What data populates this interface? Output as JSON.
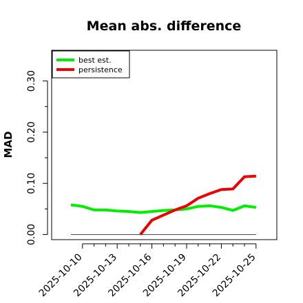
{
  "chart_data": {
    "type": "line",
    "title": "Mean abs. difference",
    "xlabel": "",
    "ylabel": "MAD",
    "x": [
      "2025-10-09",
      "2025-10-10",
      "2025-10-11",
      "2025-10-12",
      "2025-10-13",
      "2025-10-14",
      "2025-10-15",
      "2025-10-16",
      "2025-10-17",
      "2025-10-18",
      "2025-10-19",
      "2025-10-20",
      "2025-10-21",
      "2025-10-22",
      "2025-10-23",
      "2025-10-24",
      "2025-10-25"
    ],
    "x_ticks": [
      "2025-10-10",
      "2025-10-13",
      "2025-10-16",
      "2025-10-19",
      "2025-10-22",
      "2025-10-25"
    ],
    "y_ticks": [
      "0.00",
      "0.10",
      "0.20",
      "0.30"
    ],
    "ylim": [
      -0.01,
      0.36
    ],
    "grid": false,
    "legend_position": "top-left",
    "baseline_value": 0,
    "baseline_color": "#555555",
    "series": [
      {
        "name": "best est.",
        "color": "#00ee00",
        "values": [
          0.058,
          0.055,
          0.048,
          0.048,
          0.046,
          0.045,
          0.043,
          0.045,
          0.047,
          0.048,
          0.05,
          0.055,
          0.056,
          0.053,
          0.047,
          0.056,
          0.053
        ]
      },
      {
        "name": "persistence",
        "color": "#ee0000",
        "values": [
          null,
          null,
          null,
          null,
          null,
          null,
          0.0,
          0.028,
          0.038,
          0.048,
          0.056,
          0.071,
          0.08,
          0.088,
          0.089,
          0.113,
          0.114
        ]
      }
    ]
  }
}
